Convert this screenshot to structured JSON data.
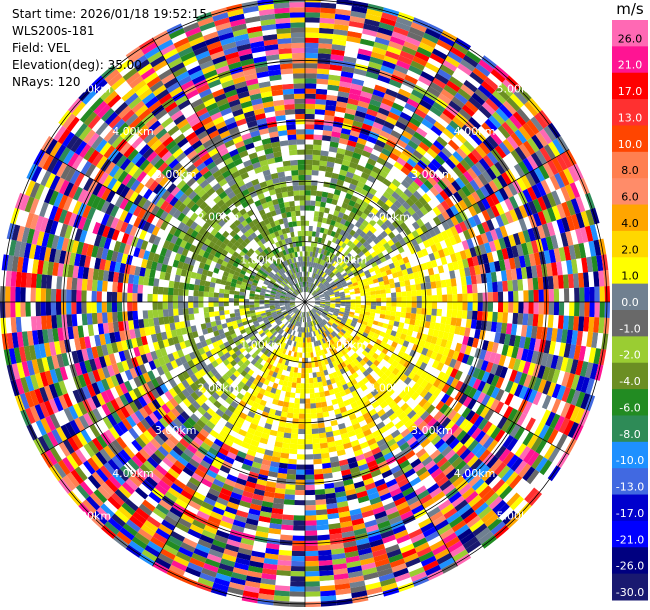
{
  "header": {
    "start_time": "Start time: 2026/01/18 19:52:15",
    "instrument": "WLS200s-181",
    "field": "Field: VEL",
    "elevation": "Elevation(deg): 35.00",
    "nrays": "NRays: 120"
  },
  "chart_data": {
    "type": "heatmap",
    "projection": "polar-ppi",
    "field": "VEL",
    "units": "m/s",
    "elevation_deg": 35.0,
    "n_rays": 120,
    "max_range_km": 5.0,
    "range_ring_labels": [
      "1.00km",
      "2.00km",
      "3.00km",
      "4.00km",
      "5.00km"
    ],
    "colorbar": {
      "unit_label": "m/s",
      "ticks": [
        "26.0",
        "21.0",
        "17.0",
        "13.0",
        "10.0",
        "8.0",
        "6.0",
        "4.0",
        "2.0",
        "1.0",
        "0.0",
        "-1.0",
        "-2.0",
        "-4.0",
        "-6.0",
        "-8.0",
        "-10.0",
        "-13.0",
        "-17.0",
        "-21.0",
        "-26.0",
        "-30.0"
      ],
      "colors": [
        "#ff69b4",
        "#ff1493",
        "#ff0000",
        "#ff3030",
        "#ff4500",
        "#ff7f50",
        "#ff8c69",
        "#ffa500",
        "#ffd700",
        "#ffff00",
        "#708090",
        "#696969",
        "#9acd32",
        "#6b8e23",
        "#228b22",
        "#2e8b57",
        "#1e90ff",
        "#4169e1",
        "#0000cd",
        "#0000ff",
        "#000080",
        "#191970"
      ]
    }
  }
}
